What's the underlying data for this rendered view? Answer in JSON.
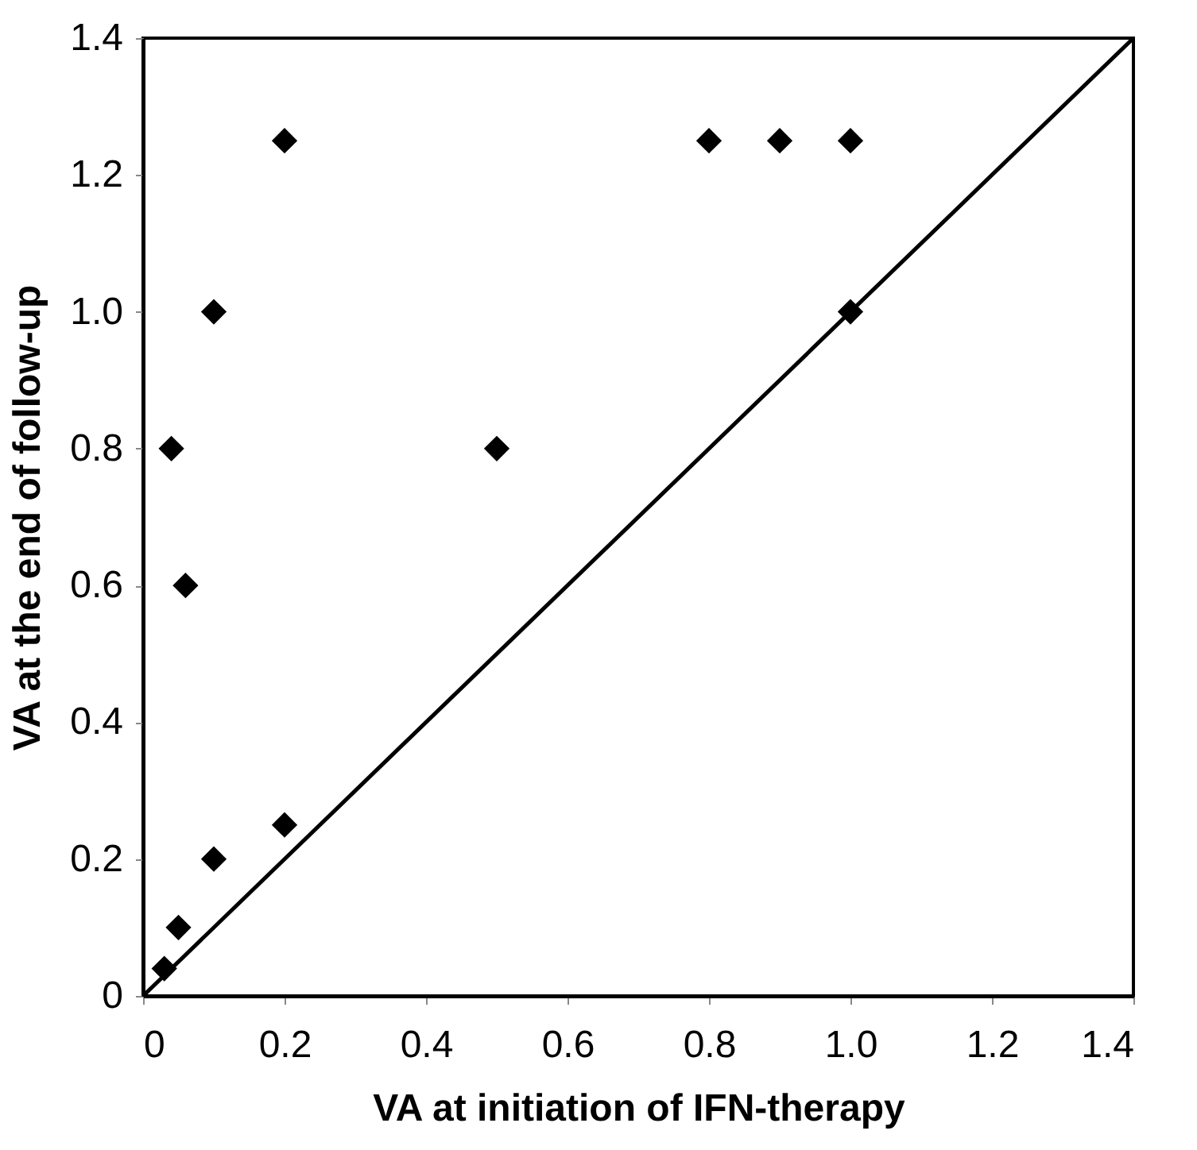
{
  "chart_data": {
    "type": "scatter",
    "xlabel": "VA at initiation of IFN-therapy",
    "ylabel": "VA at the end of follow-up",
    "xlim": [
      0,
      1.4
    ],
    "ylim": [
      0,
      1.4
    ],
    "xticks": [
      0,
      0.2,
      0.4,
      0.6,
      0.8,
      {
        "value": 1,
        "label": "1.0"
      },
      1.2,
      1.4
    ],
    "yticks": [
      0,
      0.2,
      0.4,
      0.6,
      0.8,
      {
        "value": 1,
        "label": "1.0"
      },
      1.2,
      1.4
    ],
    "grid": false,
    "series": [
      {
        "color": "#000000",
        "marker": "diamond",
        "x": [
          0.03,
          0.05,
          0.1,
          0.2,
          0.06,
          0.04,
          0.1,
          0.2,
          0.5,
          0.8,
          0.9,
          1.0,
          1.0
        ],
        "values": [
          0.04,
          0.1,
          0.2,
          0.25,
          0.6,
          0.8,
          1.0,
          1.25,
          0.8,
          1.25,
          1.25,
          1.25,
          1.0
        ]
      },
      {
        "type": "line",
        "color": "#000000",
        "marker": "none",
        "line_style": "solid",
        "x": [
          0,
          1.4
        ],
        "values": [
          0,
          1.4
        ]
      }
    ]
  }
}
